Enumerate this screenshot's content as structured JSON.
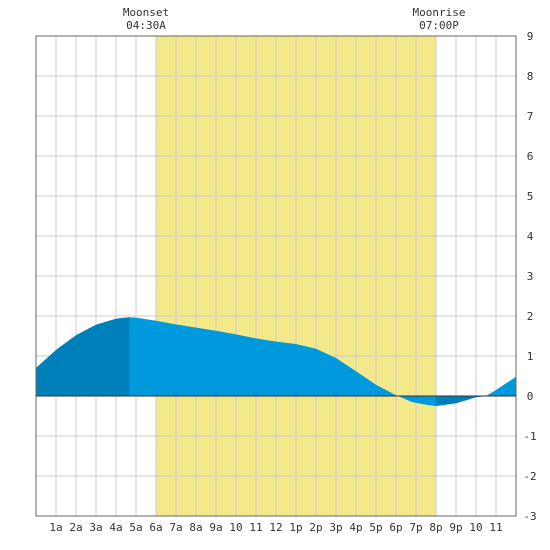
{
  "chart_data": {
    "type": "area",
    "title": "",
    "xlabel": "",
    "ylabel": "",
    "x_range_hours": [
      0,
      24
    ],
    "ylim": [
      -3,
      9
    ],
    "y_ticks": [
      9,
      8,
      7,
      6,
      5,
      4,
      3,
      2,
      1,
      0,
      -1,
      -2,
      -3
    ],
    "x_tick_labels": [
      "1a",
      "2a",
      "3a",
      "4a",
      "5a",
      "6a",
      "7a",
      "8a",
      "9a",
      "10",
      "11",
      "12",
      "1p",
      "2p",
      "3p",
      "4p",
      "5p",
      "6p",
      "7p",
      "8p",
      "9p",
      "10",
      "11"
    ],
    "daylight_hours": [
      6,
      20
    ],
    "dark_shade_hours": [
      [
        0,
        4.67
      ],
      [
        20,
        22.5
      ]
    ],
    "annotations": [
      {
        "label": "Moonset",
        "time": "04:30A"
      },
      {
        "label": "Moonrise",
        "time": "07:00P"
      }
    ],
    "series": [
      {
        "x": [
          0,
          1,
          2,
          3,
          4,
          4.67,
          5,
          6,
          7,
          8,
          9,
          10,
          11,
          12,
          13,
          14,
          15,
          16,
          17,
          18,
          18.8,
          19.5,
          20,
          21,
          22,
          22.5,
          23,
          24
        ],
        "values": [
          0.7,
          1.15,
          1.52,
          1.78,
          1.93,
          1.97,
          1.96,
          1.88,
          1.79,
          1.71,
          1.63,
          1.54,
          1.44,
          1.36,
          1.3,
          1.18,
          0.95,
          0.62,
          0.28,
          0.02,
          -0.15,
          -0.22,
          -0.25,
          -0.18,
          -0.03,
          0.0,
          0.15,
          0.48
        ]
      }
    ],
    "colors": {
      "daylight": "#f3e98a",
      "water": "#0099dd",
      "water_dark": "#0080bb",
      "grid": "#cccccc",
      "axis": "#666666"
    }
  }
}
